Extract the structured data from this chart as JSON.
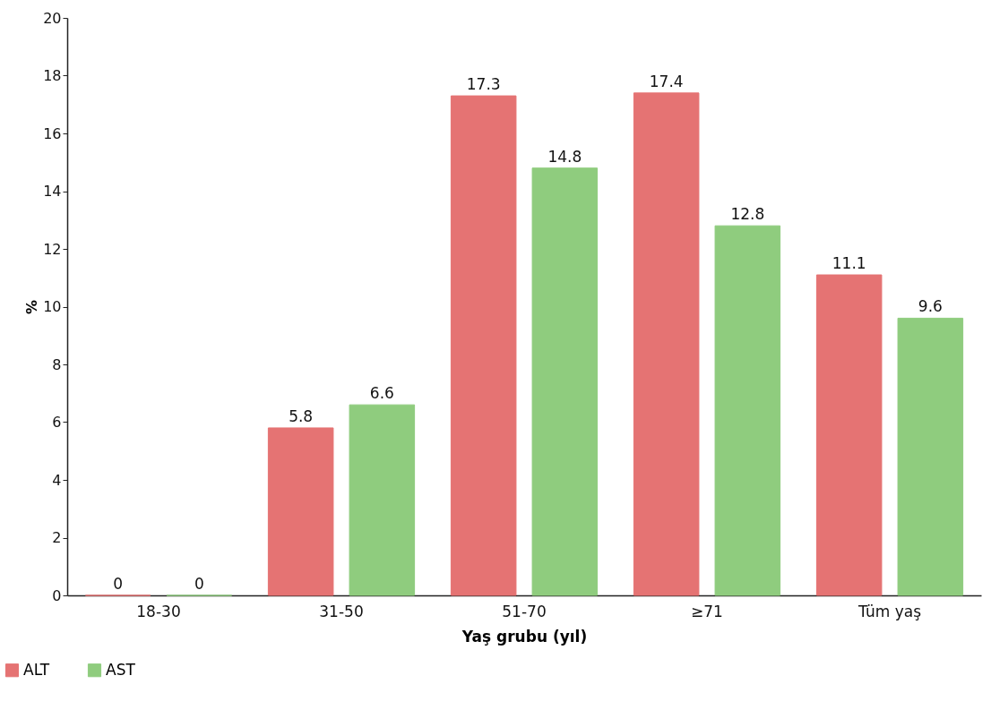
{
  "chart_data": {
    "type": "bar",
    "xlabel": "Yaş grubu (yıl)",
    "ylabel": "%",
    "categories": [
      "18-30",
      "31-50",
      "51-70",
      "≥71",
      "Tüm yaş"
    ],
    "series": [
      {
        "name": "ALT",
        "color": "#e57373",
        "values": [
          0,
          5.8,
          17.3,
          17.4,
          11.1
        ]
      },
      {
        "name": "AST",
        "color": "#8fcc7e",
        "values": [
          0,
          6.6,
          14.8,
          12.8,
          9.6
        ]
      }
    ],
    "ylim": [
      0,
      20
    ],
    "yticks": [
      0,
      2,
      4,
      6,
      8,
      10,
      12,
      14,
      16,
      18,
      20
    ],
    "grid": false,
    "legend": "bottom left",
    "data_labels": true
  }
}
